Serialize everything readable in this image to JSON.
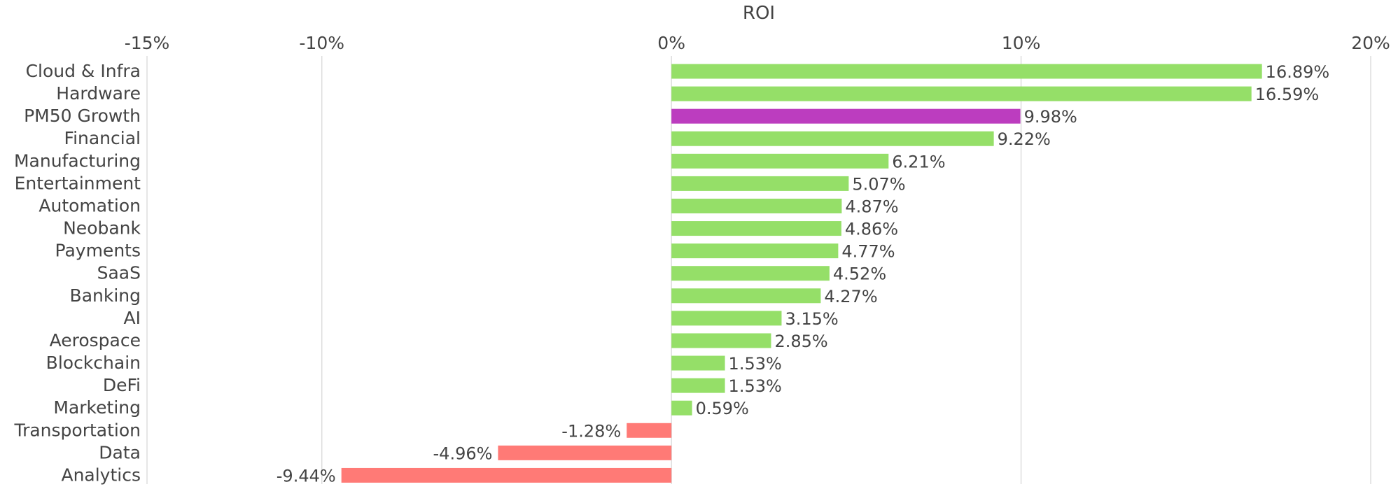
{
  "chart_data": {
    "type": "bar",
    "orientation": "horizontal",
    "title": "",
    "xlabel": "ROI",
    "ylabel": "",
    "xlim": [
      -15,
      20
    ],
    "xticks": [
      -15,
      -10,
      0,
      10,
      20
    ],
    "xtick_labels": [
      "-15%",
      "-10%",
      "0%",
      "10%",
      "20%"
    ],
    "x_axis_position": "top",
    "grid": "vertical",
    "legend": "none",
    "categories": [
      "Cloud & Infra",
      "Hardware",
      "PM50 Growth",
      "Financial",
      "Manufacturing",
      "Entertainment",
      "Automation",
      "Neobank",
      "Payments",
      "SaaS",
      "Banking",
      "AI",
      "Aerospace",
      "Blockchain",
      "DeFi",
      "Marketing",
      "Transportation",
      "Data",
      "Analytics"
    ],
    "values": [
      16.89,
      16.59,
      9.98,
      9.22,
      6.21,
      5.07,
      4.87,
      4.86,
      4.77,
      4.52,
      4.27,
      3.15,
      2.85,
      1.53,
      1.53,
      0.59,
      -1.28,
      -4.96,
      -9.44
    ],
    "value_labels": [
      "16.89%",
      "16.59%",
      "9.98%",
      "9.22%",
      "6.21%",
      "5.07%",
      "4.87%",
      "4.86%",
      "4.77%",
      "4.52%",
      "4.27%",
      "3.15%",
      "2.85%",
      "1.53%",
      "1.53%",
      "0.59%",
      "-1.28%",
      "-4.96%",
      "-9.44%"
    ],
    "highlight_category": "PM50 Growth",
    "colors": {
      "positive": "#95df68",
      "negative": "#ff7a76",
      "highlight": "#bc3dbf",
      "grid": "#dddddd",
      "text": "#444444"
    }
  }
}
